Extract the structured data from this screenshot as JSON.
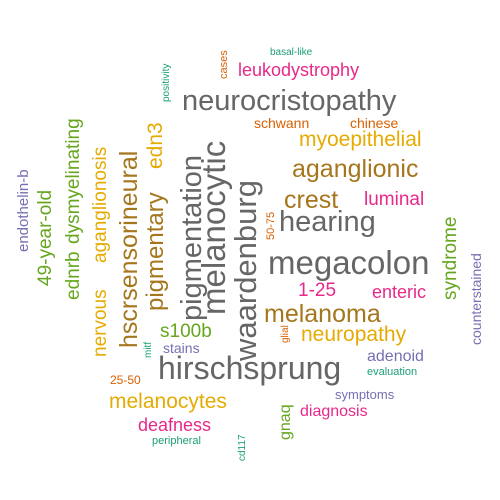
{
  "colors": {
    "teal": "#1b9e77",
    "orange": "#d95f02",
    "purple": "#7570b3",
    "magenta": "#e7298a",
    "green": "#66a61e",
    "gold": "#e6ab02",
    "brown": "#a6761d",
    "gray": "#666666"
  },
  "words": [
    {
      "text": "neurocristopathy",
      "color": "gray"
    },
    {
      "text": "megacolon",
      "color": "gray"
    },
    {
      "text": "hirschsprung",
      "color": "gray"
    },
    {
      "text": "waardenburg",
      "color": "gray"
    },
    {
      "text": "melanocytic",
      "color": "gray"
    },
    {
      "text": "pigmentation",
      "color": "gray"
    },
    {
      "text": "hearing",
      "color": "gray"
    },
    {
      "text": "hscrsensorineural",
      "color": "brown"
    },
    {
      "text": "pigmentary",
      "color": "brown"
    },
    {
      "text": "edn3",
      "color": "gold"
    },
    {
      "text": "aganglionic",
      "color": "brown"
    },
    {
      "text": "crest",
      "color": "brown"
    },
    {
      "text": "myoepithelial",
      "color": "gold"
    },
    {
      "text": "melanoma",
      "color": "brown"
    },
    {
      "text": "neuropathy",
      "color": "gold"
    },
    {
      "text": "melanocytes",
      "color": "gold"
    },
    {
      "text": "aganglionosis",
      "color": "gold"
    },
    {
      "text": "nervous",
      "color": "gold"
    },
    {
      "text": "dysmyelinating",
      "color": "green"
    },
    {
      "text": "ednrb",
      "color": "green"
    },
    {
      "text": "49-year-old",
      "color": "green"
    },
    {
      "text": "s100b",
      "color": "green"
    },
    {
      "text": "syndrome",
      "color": "green"
    },
    {
      "text": "gnaq",
      "color": "green"
    },
    {
      "text": "leukodystrophy",
      "color": "magenta"
    },
    {
      "text": "luminal",
      "color": "magenta"
    },
    {
      "text": "1-25",
      "color": "magenta"
    },
    {
      "text": "enteric",
      "color": "magenta"
    },
    {
      "text": "diagnosis",
      "color": "magenta"
    },
    {
      "text": "deafness",
      "color": "magenta"
    },
    {
      "text": "endothelin-b",
      "color": "purple"
    },
    {
      "text": "counterstained",
      "color": "purple"
    },
    {
      "text": "adenoid",
      "color": "purple"
    },
    {
      "text": "stains",
      "color": "purple"
    },
    {
      "text": "symptoms",
      "color": "purple"
    },
    {
      "text": "schwann",
      "color": "orange"
    },
    {
      "text": "chinese",
      "color": "orange"
    },
    {
      "text": "cases",
      "color": "orange"
    },
    {
      "text": "50-75",
      "color": "orange"
    },
    {
      "text": "25-50",
      "color": "orange"
    },
    {
      "text": "glial",
      "color": "orange"
    },
    {
      "text": "basal-like",
      "color": "teal"
    },
    {
      "text": "positivity",
      "color": "teal"
    },
    {
      "text": "mitf",
      "color": "teal"
    },
    {
      "text": "evaluation",
      "color": "teal"
    },
    {
      "text": "peripheral",
      "color": "teal"
    },
    {
      "text": "cd117",
      "color": "teal"
    }
  ]
}
